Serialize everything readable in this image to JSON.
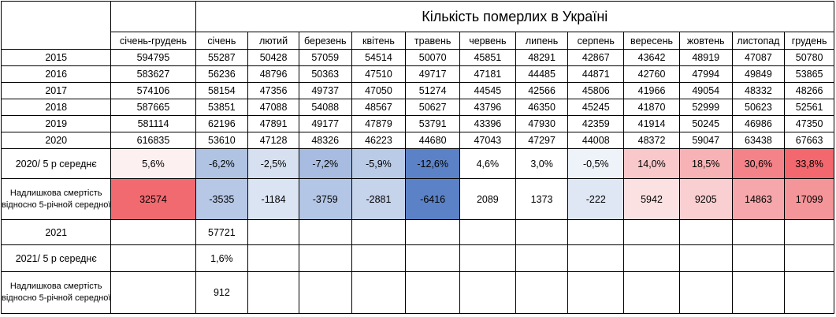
{
  "title": "Кількість померлих в Україні",
  "columns": [
    "січень-грудень",
    "січень",
    "лютий",
    "березень",
    "квітень",
    "травень",
    "червень",
    "липень",
    "серпень",
    "вересень",
    "жовтень",
    "листопад",
    "грудень"
  ],
  "years": [
    {
      "label": "2015",
      "values": [
        "594795",
        "55287",
        "50428",
        "57059",
        "54514",
        "50070",
        "45851",
        "48291",
        "42867",
        "43642",
        "48919",
        "47087",
        "50780"
      ]
    },
    {
      "label": "2016",
      "values": [
        "583627",
        "56236",
        "48796",
        "50363",
        "47510",
        "49717",
        "47181",
        "44485",
        "44871",
        "42760",
        "47994",
        "49849",
        "53865"
      ]
    },
    {
      "label": "2017",
      "values": [
        "574106",
        "58154",
        "47356",
        "49737",
        "47050",
        "51274",
        "44545",
        "42566",
        "45806",
        "41966",
        "49054",
        "48332",
        "48266"
      ]
    },
    {
      "label": "2018",
      "values": [
        "587665",
        "53851",
        "47088",
        "54088",
        "48567",
        "50627",
        "43796",
        "46350",
        "45245",
        "41870",
        "52999",
        "50623",
        "52561"
      ]
    },
    {
      "label": "2019",
      "values": [
        "581114",
        "62196",
        "47891",
        "49177",
        "47879",
        "53791",
        "43396",
        "47930",
        "42359",
        "41914",
        "50245",
        "46986",
        "47350"
      ]
    },
    {
      "label": "2020",
      "values": [
        "616835",
        "53610",
        "47128",
        "48326",
        "46223",
        "44680",
        "47043",
        "47297",
        "44008",
        "48372",
        "59047",
        "63438",
        "67663"
      ]
    }
  ],
  "ratio_2020": {
    "label": "2020/ 5 р середнє",
    "values": [
      "5,6%",
      "-6,2%",
      "-2,5%",
      "-7,2%",
      "-5,9%",
      "-12,6%",
      "4,6%",
      "3,0%",
      "-0,5%",
      "14,0%",
      "18,5%",
      "30,6%",
      "33,8%"
    ]
  },
  "excess_2020": {
    "label": "Надлишкова смертість відносно 5-річной середної",
    "values": [
      "32574",
      "-3535",
      "-1184",
      "-3759",
      "-2881",
      "-6416",
      "2089",
      "1373",
      "-222",
      "5942",
      "9205",
      "14863",
      "17099"
    ]
  },
  "row_2021": {
    "label": "2021",
    "values": [
      "",
      "57721",
      "",
      "",
      "",
      "",
      "",
      "",
      "",
      "",
      "",
      "",
      ""
    ]
  },
  "ratio_2021": {
    "label": "2021/ 5 р середнє",
    "values": [
      "",
      "1,6%",
      "",
      "",
      "",
      "",
      "",
      "",
      "",
      "",
      "",
      "",
      ""
    ]
  },
  "excess_2021": {
    "label": "Надлишкова смертість відносно 5-річной середної",
    "values": [
      "",
      "912",
      "",
      "",
      "",
      "",
      "",
      "",
      "",
      "",
      "",
      "",
      ""
    ]
  },
  "colors": {
    "ratio_2020": [
      "#fdf0f1",
      "#b0c3e3",
      "#d6e0f1",
      "#a7bce0",
      "#bacbe7",
      "#5b82c6",
      "#ffffff",
      "#ffffff",
      "#eef2f9",
      "#f8c8cb",
      "#f7b2b5",
      "#f48389",
      "#f2686e"
    ],
    "excess_2020": [
      "#f16a70",
      "#b6c8e6",
      "#dbe4f3",
      "#b4c6e5",
      "#c5d3eb",
      "#5b82c6",
      "#ffffff",
      "#ffffff",
      "#dfe7f4",
      "#fbe1e2",
      "#f9cfd1",
      "#f5a7ab",
      "#f49599"
    ]
  }
}
